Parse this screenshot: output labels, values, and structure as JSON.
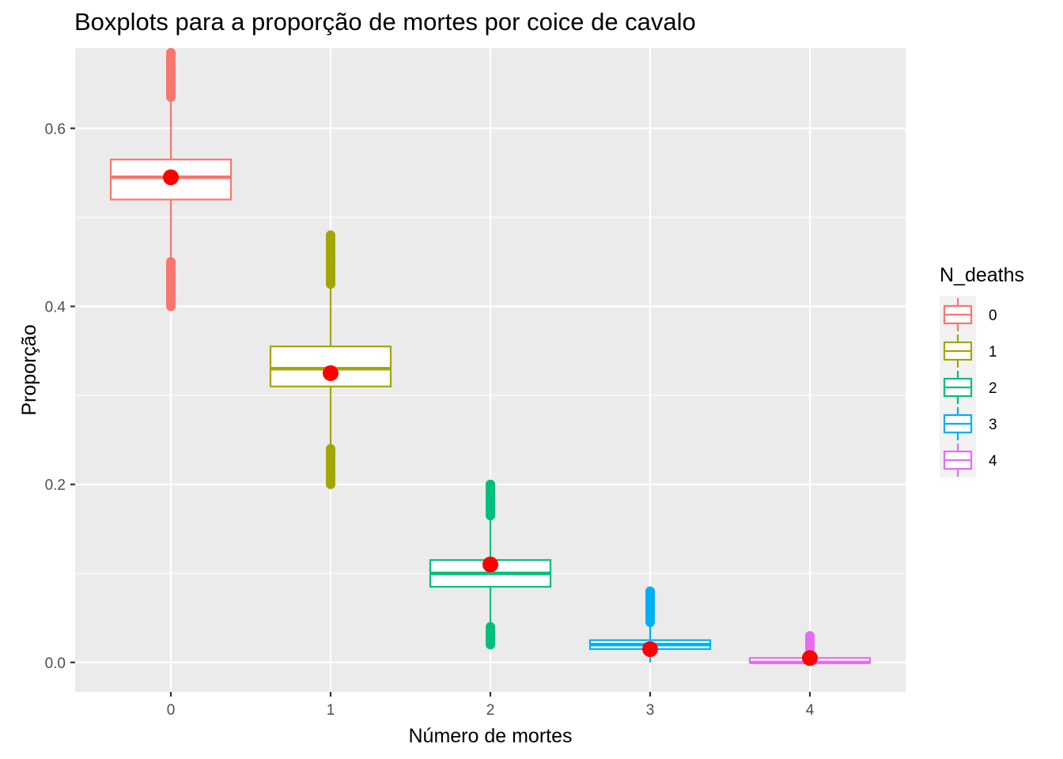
{
  "chart_data": {
    "type": "boxplot",
    "title": "Boxplots para a proporção de mortes por coice de cavalo",
    "xlabel": "Número de mortes",
    "ylabel": "Proporção",
    "categories": [
      "0",
      "1",
      "2",
      "3",
      "4"
    ],
    "ylim": [
      -0.033,
      0.69
    ],
    "yticks": [
      0.0,
      0.2,
      0.4,
      0.6
    ],
    "ytick_labels": [
      "0.0",
      "0.2",
      "0.4",
      "0.6"
    ],
    "grid": true,
    "legend": {
      "title": "N_deaths",
      "position": "right",
      "entries": [
        "0",
        "1",
        "2",
        "3",
        "4"
      ]
    },
    "colors": [
      "#F8766D",
      "#A3A500",
      "#00BF7D",
      "#00B0F6",
      "#E76BF3"
    ],
    "mean_marker_color": "#FF0000",
    "boxes": [
      {
        "category": "0",
        "whisker_low": 0.455,
        "q1": 0.52,
        "median": 0.545,
        "q3": 0.565,
        "whisker_high": 0.63,
        "mean": 0.545,
        "outliers_low": [
          0.4,
          0.45
        ],
        "outliers_high": [
          0.635,
          0.685
        ]
      },
      {
        "category": "1",
        "whisker_low": 0.245,
        "q1": 0.31,
        "median": 0.33,
        "q3": 0.355,
        "whisker_high": 0.425,
        "mean": 0.325,
        "outliers_low": [
          0.2,
          0.24
        ],
        "outliers_high": [
          0.425,
          0.48
        ]
      },
      {
        "category": "2",
        "whisker_low": 0.045,
        "q1": 0.085,
        "median": 0.1,
        "q3": 0.115,
        "whisker_high": 0.16,
        "mean": 0.11,
        "outliers_low": [
          0.02,
          0.04
        ],
        "outliers_high": [
          0.165,
          0.2
        ]
      },
      {
        "category": "3",
        "whisker_low": 0.0,
        "q1": 0.015,
        "median": 0.02,
        "q3": 0.025,
        "whisker_high": 0.04,
        "mean": 0.015,
        "outliers_low": [],
        "outliers_high": [
          0.045,
          0.08
        ]
      },
      {
        "category": "4",
        "whisker_low": 0.0,
        "q1": 0.0,
        "median": 0.0,
        "q3": 0.005,
        "whisker_high": 0.01,
        "mean": 0.005,
        "outliers_low": [],
        "outliers_high": [
          0.015,
          0.03
        ]
      }
    ]
  }
}
